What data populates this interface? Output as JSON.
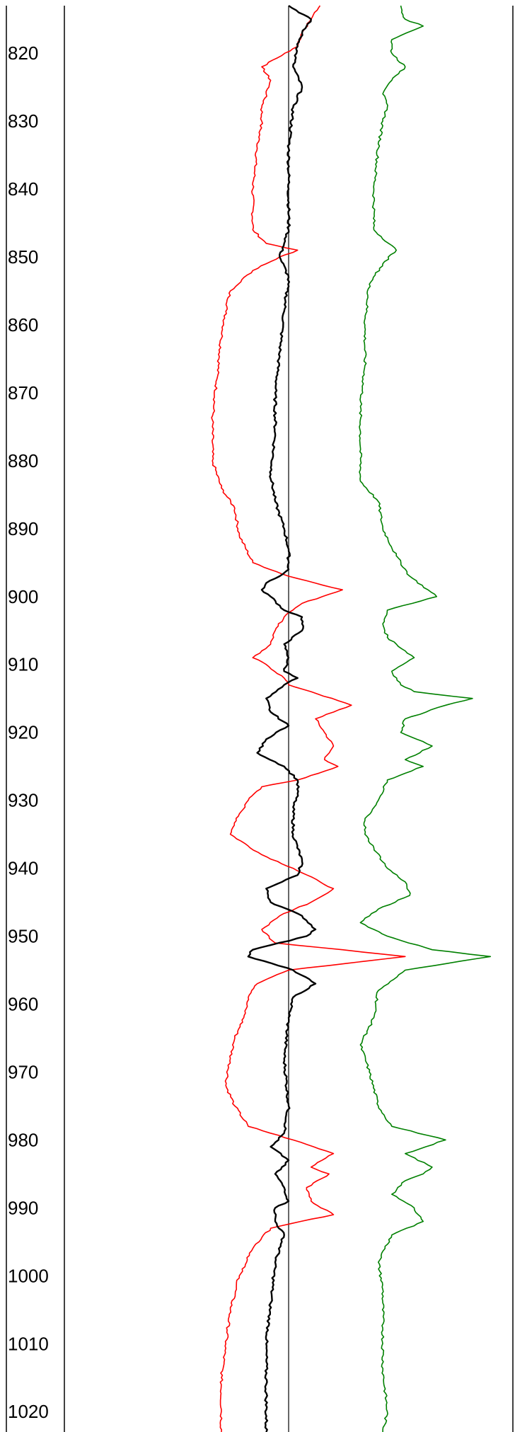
{
  "chart_data": {
    "type": "line",
    "title": "",
    "xlabel": "",
    "ylabel": "",
    "orientation": "vertical-depth",
    "y_axis": {
      "range": [
        813,
        1023
      ],
      "ticks": [
        820,
        830,
        840,
        850,
        860,
        870,
        880,
        890,
        900,
        910,
        920,
        930,
        940,
        950,
        960,
        970,
        980,
        990,
        1000,
        1010,
        1020
      ],
      "tick_labels": [
        "820",
        "830",
        "840",
        "850",
        "860",
        "870",
        "880",
        "890",
        "900",
        "910",
        "920",
        "930",
        "940",
        "950",
        "960",
        "970",
        "980",
        "990",
        "1000",
        "1010",
        "1020"
      ]
    },
    "x_axis": {
      "range": [
        0,
        1
      ],
      "reference_line": 0.5
    },
    "grid": false,
    "series": [
      {
        "color": "#ff0000",
        "points": [
          [
            813,
            0.57
          ],
          [
            815,
            0.55
          ],
          [
            817,
            0.53
          ],
          [
            819,
            0.52
          ],
          [
            822,
            0.44
          ],
          [
            824,
            0.46
          ],
          [
            826,
            0.45
          ],
          [
            828,
            0.44
          ],
          [
            830,
            0.44
          ],
          [
            834,
            0.43
          ],
          [
            840,
            0.42
          ],
          [
            846,
            0.42
          ],
          [
            848,
            0.45
          ],
          [
            849,
            0.52
          ],
          [
            850,
            0.48
          ],
          [
            852,
            0.42
          ],
          [
            855,
            0.37
          ],
          [
            858,
            0.36
          ],
          [
            862,
            0.35
          ],
          [
            868,
            0.34
          ],
          [
            874,
            0.33
          ],
          [
            880,
            0.33
          ],
          [
            884,
            0.35
          ],
          [
            887,
            0.38
          ],
          [
            891,
            0.39
          ],
          [
            895,
            0.42
          ],
          [
            897,
            0.5
          ],
          [
            899,
            0.62
          ],
          [
            901,
            0.53
          ],
          [
            903,
            0.49
          ],
          [
            905,
            0.47
          ],
          [
            907,
            0.46
          ],
          [
            908,
            0.44
          ],
          [
            909,
            0.42
          ],
          [
            910,
            0.45
          ],
          [
            912,
            0.49
          ],
          [
            913,
            0.5
          ],
          [
            914,
            0.55
          ],
          [
            916,
            0.64
          ],
          [
            918,
            0.56
          ],
          [
            920,
            0.58
          ],
          [
            922,
            0.6
          ],
          [
            924,
            0.58
          ],
          [
            925,
            0.61
          ],
          [
            927,
            0.52
          ],
          [
            928,
            0.44
          ],
          [
            930,
            0.41
          ],
          [
            932,
            0.39
          ],
          [
            935,
            0.37
          ],
          [
            938,
            0.44
          ],
          [
            940,
            0.51
          ],
          [
            942,
            0.57
          ],
          [
            943,
            0.6
          ],
          [
            945,
            0.55
          ],
          [
            947,
            0.48
          ],
          [
            949,
            0.44
          ],
          [
            951,
            0.47
          ],
          [
            952,
            0.62
          ],
          [
            953,
            0.76
          ],
          [
            955,
            0.5
          ],
          [
            957,
            0.43
          ],
          [
            959,
            0.41
          ],
          [
            962,
            0.4
          ],
          [
            965,
            0.38
          ],
          [
            968,
            0.37
          ],
          [
            972,
            0.36
          ],
          [
            975,
            0.38
          ],
          [
            978,
            0.41
          ],
          [
            980,
            0.51
          ],
          [
            982,
            0.6
          ],
          [
            984,
            0.55
          ],
          [
            985,
            0.59
          ],
          [
            987,
            0.54
          ],
          [
            989,
            0.55
          ],
          [
            991,
            0.6
          ],
          [
            993,
            0.46
          ],
          [
            996,
            0.42
          ],
          [
            1000,
            0.39
          ],
          [
            1005,
            0.37
          ],
          [
            1010,
            0.36
          ],
          [
            1015,
            0.35
          ],
          [
            1020,
            0.35
          ],
          [
            1023,
            0.35
          ]
        ]
      },
      {
        "color": "#000000",
        "points": [
          [
            813,
            0.5
          ],
          [
            815,
            0.55
          ],
          [
            817,
            0.53
          ],
          [
            819,
            0.52
          ],
          [
            822,
            0.51
          ],
          [
            825,
            0.53
          ],
          [
            828,
            0.51
          ],
          [
            834,
            0.5
          ],
          [
            840,
            0.5
          ],
          [
            846,
            0.5
          ],
          [
            848,
            0.49
          ],
          [
            850,
            0.48
          ],
          [
            853,
            0.5
          ],
          [
            858,
            0.49
          ],
          [
            864,
            0.48
          ],
          [
            870,
            0.47
          ],
          [
            876,
            0.47
          ],
          [
            882,
            0.46
          ],
          [
            886,
            0.47
          ],
          [
            890,
            0.49
          ],
          [
            893,
            0.5
          ],
          [
            896,
            0.5
          ],
          [
            897,
            0.48
          ],
          [
            898,
            0.45
          ],
          [
            899,
            0.44
          ],
          [
            900,
            0.46
          ],
          [
            902,
            0.49
          ],
          [
            903,
            0.53
          ],
          [
            905,
            0.53
          ],
          [
            907,
            0.49
          ],
          [
            909,
            0.5
          ],
          [
            911,
            0.49
          ],
          [
            912,
            0.52
          ],
          [
            913,
            0.49
          ],
          [
            915,
            0.45
          ],
          [
            917,
            0.46
          ],
          [
            919,
            0.5
          ],
          [
            921,
            0.45
          ],
          [
            923,
            0.43
          ],
          [
            925,
            0.49
          ],
          [
            927,
            0.52
          ],
          [
            929,
            0.52
          ],
          [
            931,
            0.51
          ],
          [
            935,
            0.51
          ],
          [
            939,
            0.53
          ],
          [
            941,
            0.52
          ],
          [
            943,
            0.45
          ],
          [
            945,
            0.46
          ],
          [
            947,
            0.53
          ],
          [
            949,
            0.56
          ],
          [
            950,
            0.54
          ],
          [
            952,
            0.42
          ],
          [
            953,
            0.41
          ],
          [
            955,
            0.51
          ],
          [
            957,
            0.56
          ],
          [
            959,
            0.51
          ],
          [
            962,
            0.5
          ],
          [
            968,
            0.49
          ],
          [
            975,
            0.5
          ],
          [
            979,
            0.49
          ],
          [
            981,
            0.46
          ],
          [
            983,
            0.5
          ],
          [
            985,
            0.47
          ],
          [
            987,
            0.49
          ],
          [
            989,
            0.5
          ],
          [
            990,
            0.47
          ],
          [
            992,
            0.47
          ],
          [
            994,
            0.49
          ],
          [
            998,
            0.47
          ],
          [
            1004,
            0.46
          ],
          [
            1010,
            0.45
          ],
          [
            1016,
            0.45
          ],
          [
            1023,
            0.45
          ]
        ]
      },
      {
        "color": "#008000",
        "points": [
          [
            813,
            0.75
          ],
          [
            815,
            0.76
          ],
          [
            816,
            0.8
          ],
          [
            818,
            0.73
          ],
          [
            820,
            0.73
          ],
          [
            822,
            0.76
          ],
          [
            824,
            0.73
          ],
          [
            826,
            0.71
          ],
          [
            828,
            0.72
          ],
          [
            830,
            0.71
          ],
          [
            834,
            0.7
          ],
          [
            840,
            0.69
          ],
          [
            846,
            0.69
          ],
          [
            849,
            0.74
          ],
          [
            851,
            0.71
          ],
          [
            854,
            0.68
          ],
          [
            860,
            0.67
          ],
          [
            866,
            0.67
          ],
          [
            872,
            0.66
          ],
          [
            878,
            0.66
          ],
          [
            883,
            0.66
          ],
          [
            886,
            0.7
          ],
          [
            890,
            0.71
          ],
          [
            894,
            0.74
          ],
          [
            897,
            0.77
          ],
          [
            900,
            0.83
          ],
          [
            902,
            0.72
          ],
          [
            904,
            0.71
          ],
          [
            906,
            0.72
          ],
          [
            909,
            0.78
          ],
          [
            911,
            0.73
          ],
          [
            913,
            0.75
          ],
          [
            914,
            0.78
          ],
          [
            915,
            0.91
          ],
          [
            916,
            0.85
          ],
          [
            918,
            0.76
          ],
          [
            920,
            0.75
          ],
          [
            922,
            0.82
          ],
          [
            924,
            0.76
          ],
          [
            925,
            0.8
          ],
          [
            927,
            0.72
          ],
          [
            930,
            0.7
          ],
          [
            933,
            0.67
          ],
          [
            935,
            0.67
          ],
          [
            937,
            0.69
          ],
          [
            940,
            0.72
          ],
          [
            942,
            0.76
          ],
          [
            944,
            0.77
          ],
          [
            946,
            0.7
          ],
          [
            948,
            0.66
          ],
          [
            950,
            0.72
          ],
          [
            952,
            0.82
          ],
          [
            953,
            0.95
          ],
          [
            955,
            0.76
          ],
          [
            958,
            0.7
          ],
          [
            962,
            0.69
          ],
          [
            966,
            0.66
          ],
          [
            970,
            0.68
          ],
          [
            975,
            0.7
          ],
          [
            978,
            0.73
          ],
          [
            980,
            0.85
          ],
          [
            982,
            0.76
          ],
          [
            984,
            0.82
          ],
          [
            985,
            0.8
          ],
          [
            986,
            0.76
          ],
          [
            988,
            0.73
          ],
          [
            990,
            0.78
          ],
          [
            992,
            0.8
          ],
          [
            994,
            0.73
          ],
          [
            998,
            0.7
          ],
          [
            1002,
            0.71
          ],
          [
            1008,
            0.71
          ],
          [
            1014,
            0.71
          ],
          [
            1020,
            0.72
          ],
          [
            1023,
            0.71
          ]
        ]
      }
    ]
  }
}
